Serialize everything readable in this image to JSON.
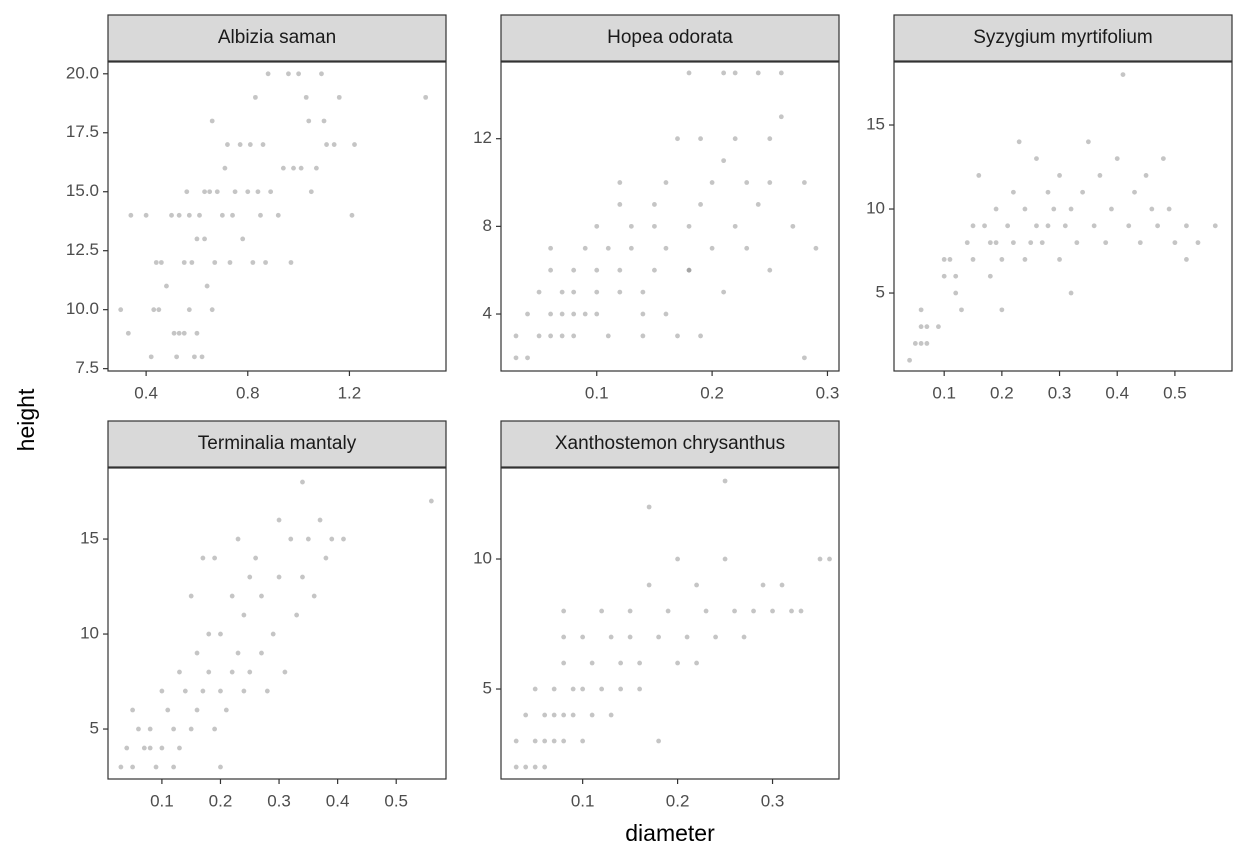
{
  "chart_data": {
    "type": "scatter",
    "x_label": "diameter",
    "y_label": "height",
    "color": "#7f7f7f",
    "alpha": 0.45,
    "panels": [
      {
        "title": "Albizia saman",
        "xlim": [
          0.25,
          1.58
        ],
        "ylim": [
          7.4,
          20.5
        ],
        "xticks": [
          0.4,
          0.8,
          1.2
        ],
        "yticks": [
          7.5,
          {
            "value": 10,
            "label": "10.0"
          },
          12.5,
          {
            "value": 15,
            "label": "15.0"
          },
          17.5,
          {
            "value": 20,
            "label": "20.0"
          }
        ],
        "x": [
          0.3,
          0.33,
          0.34,
          0.4,
          0.42,
          0.43,
          0.44,
          0.45,
          0.46,
          0.48,
          0.5,
          0.51,
          0.52,
          0.53,
          0.53,
          0.55,
          0.55,
          0.56,
          0.57,
          0.57,
          0.58,
          0.59,
          0.6,
          0.6,
          0.61,
          0.62,
          0.63,
          0.63,
          0.64,
          0.65,
          0.66,
          0.66,
          0.67,
          0.68,
          0.7,
          0.71,
          0.72,
          0.73,
          0.74,
          0.75,
          0.77,
          0.78,
          0.8,
          0.81,
          0.82,
          0.83,
          0.84,
          0.85,
          0.86,
          0.87,
          0.88,
          0.89,
          0.92,
          0.94,
          0.96,
          0.97,
          0.98,
          1.0,
          1.01,
          1.03,
          1.04,
          1.05,
          1.07,
          1.09,
          1.1,
          1.11,
          1.14,
          1.16,
          1.21,
          1.22,
          1.5
        ],
        "y": [
          10,
          9,
          14,
          14,
          8,
          10,
          12,
          10,
          12,
          11,
          14,
          9,
          8,
          9,
          14,
          12,
          9,
          15,
          10,
          14,
          12,
          8,
          13,
          9,
          14,
          8,
          15,
          13,
          11,
          15,
          18,
          10,
          12,
          15,
          14,
          16,
          17,
          12,
          14,
          15,
          17,
          13,
          15,
          17,
          12,
          19,
          15,
          14,
          17,
          12,
          20,
          15,
          14,
          16,
          20,
          12,
          16,
          20,
          16,
          19,
          18,
          15,
          16,
          20,
          18,
          17,
          17,
          19,
          14,
          17,
          19
        ]
      },
      {
        "title": "Hopea odorata",
        "xlim": [
          0.017,
          0.31
        ],
        "ylim": [
          1.4,
          15.5
        ],
        "xticks": [
          0.1,
          0.2,
          0.3
        ],
        "yticks": [
          4,
          8,
          12
        ],
        "x": [
          0.03,
          0.04,
          0.03,
          0.05,
          0.06,
          0.07,
          0.04,
          0.06,
          0.07,
          0.08,
          0.09,
          0.1,
          0.05,
          0.07,
          0.08,
          0.1,
          0.12,
          0.14,
          0.06,
          0.08,
          0.1,
          0.12,
          0.15,
          0.18,
          0.06,
          0.09,
          0.11,
          0.13,
          0.16,
          0.2,
          0.23,
          0.08,
          0.11,
          0.14,
          0.17,
          0.1,
          0.13,
          0.15,
          0.18,
          0.22,
          0.12,
          0.15,
          0.19,
          0.24,
          0.12,
          0.16,
          0.2,
          0.23,
          0.25,
          0.17,
          0.19,
          0.22,
          0.25,
          0.21,
          0.26,
          0.18,
          0.21,
          0.22,
          0.24,
          0.26,
          0.28,
          0.29,
          0.28,
          0.18,
          0.21,
          0.25,
          0.27,
          0.16,
          0.19,
          0.14
        ],
        "y": [
          2,
          2,
          3,
          3,
          3,
          3,
          4,
          4,
          4,
          4,
          4,
          4,
          5,
          5,
          5,
          5,
          5,
          5,
          6,
          6,
          6,
          6,
          6,
          6,
          7,
          7,
          7,
          7,
          7,
          7,
          7,
          3,
          3,
          3,
          3,
          8,
          8,
          8,
          8,
          8,
          9,
          9,
          9,
          9,
          10,
          10,
          10,
          10,
          10,
          12,
          12,
          12,
          12,
          11,
          13,
          15,
          15,
          15,
          15,
          15,
          10,
          7,
          2,
          6,
          5,
          6,
          8,
          4,
          3,
          4
        ]
      },
      {
        "title": "Syzygium myrtifolium",
        "xlim": [
          0.013,
          0.599
        ],
        "ylim": [
          0.36,
          18.75
        ],
        "xticks": [
          0.1,
          0.2,
          0.3,
          0.4,
          0.5
        ],
        "yticks": [
          5,
          10,
          15
        ],
        "x": [
          0.04,
          0.05,
          0.06,
          0.07,
          0.06,
          0.07,
          0.09,
          0.06,
          0.1,
          0.1,
          0.12,
          0.13,
          0.12,
          0.14,
          0.15,
          0.16,
          0.17,
          0.18,
          0.18,
          0.19,
          0.2,
          0.2,
          0.21,
          0.22,
          0.22,
          0.23,
          0.24,
          0.24,
          0.26,
          0.26,
          0.27,
          0.28,
          0.29,
          0.3,
          0.3,
          0.31,
          0.32,
          0.32,
          0.33,
          0.34,
          0.35,
          0.36,
          0.37,
          0.38,
          0.39,
          0.4,
          0.41,
          0.42,
          0.43,
          0.44,
          0.45,
          0.46,
          0.47,
          0.48,
          0.49,
          0.5,
          0.52,
          0.52,
          0.54,
          0.57,
          0.15,
          0.25,
          0.28,
          0.11,
          0.19
        ],
        "y": [
          1,
          2,
          2,
          2,
          3,
          3,
          3,
          4,
          6,
          7,
          5,
          4,
          6,
          8,
          7,
          12,
          9,
          6,
          8,
          10,
          7,
          4,
          9,
          8,
          11,
          14,
          10,
          7,
          9,
          13,
          8,
          11,
          10,
          7,
          12,
          9,
          5,
          10,
          8,
          11,
          14,
          9,
          12,
          8,
          10,
          13,
          18,
          9,
          11,
          8,
          12,
          10,
          9,
          13,
          10,
          8,
          7,
          9,
          8,
          9,
          9,
          8,
          9,
          7,
          8
        ]
      },
      {
        "title": "Terminalia mantaly",
        "xlim": [
          0.008,
          0.585
        ],
        "ylim": [
          2.37,
          18.74
        ],
        "xticks": [
          0.1,
          0.2,
          0.3,
          0.4,
          0.5
        ],
        "yticks": [
          5,
          10,
          15
        ],
        "x": [
          0.03,
          0.04,
          0.05,
          0.05,
          0.06,
          0.07,
          0.08,
          0.09,
          0.1,
          0.1,
          0.11,
          0.12,
          0.12,
          0.13,
          0.13,
          0.14,
          0.15,
          0.16,
          0.16,
          0.17,
          0.17,
          0.18,
          0.19,
          0.19,
          0.2,
          0.2,
          0.21,
          0.22,
          0.22,
          0.23,
          0.23,
          0.24,
          0.24,
          0.25,
          0.25,
          0.26,
          0.27,
          0.27,
          0.28,
          0.29,
          0.3,
          0.3,
          0.31,
          0.32,
          0.33,
          0.34,
          0.34,
          0.35,
          0.36,
          0.37,
          0.38,
          0.39,
          0.41,
          0.56,
          0.15,
          0.2,
          0.08,
          0.18
        ],
        "y": [
          3,
          4,
          3,
          6,
          5,
          4,
          5,
          3,
          4,
          7,
          6,
          3,
          5,
          4,
          8,
          7,
          5,
          6,
          9,
          7,
          14,
          8,
          5,
          14,
          10,
          7,
          6,
          8,
          12,
          9,
          15,
          11,
          7,
          8,
          13,
          14,
          12,
          9,
          7,
          10,
          13,
          16,
          8,
          15,
          11,
          18,
          13,
          15,
          12,
          16,
          14,
          15,
          15,
          17,
          12,
          3,
          4,
          10
        ]
      },
      {
        "title": "Xanthostemon chrysanthus",
        "xlim": [
          0.014,
          0.37
        ],
        "ylim": [
          1.54,
          13.5
        ],
        "xticks": [
          0.1,
          0.2,
          0.3
        ],
        "yticks": [
          5,
          10
        ],
        "x": [
          0.03,
          0.03,
          0.04,
          0.05,
          0.06,
          0.04,
          0.05,
          0.06,
          0.06,
          0.07,
          0.07,
          0.08,
          0.08,
          0.09,
          0.1,
          0.05,
          0.07,
          0.08,
          0.08,
          0.08,
          0.09,
          0.1,
          0.1,
          0.11,
          0.11,
          0.12,
          0.12,
          0.13,
          0.13,
          0.14,
          0.14,
          0.15,
          0.15,
          0.16,
          0.16,
          0.17,
          0.17,
          0.18,
          0.18,
          0.19,
          0.2,
          0.2,
          0.21,
          0.22,
          0.22,
          0.23,
          0.24,
          0.25,
          0.25,
          0.26,
          0.27,
          0.28,
          0.29,
          0.3,
          0.31,
          0.32,
          0.33,
          0.35,
          0.36
        ],
        "y": [
          3,
          2,
          2,
          2,
          2,
          4,
          3,
          3,
          4,
          3,
          4,
          4,
          3,
          4,
          3,
          5,
          5,
          6,
          7,
          8,
          5,
          5,
          7,
          4,
          6,
          5,
          8,
          7,
          4,
          6,
          5,
          7,
          8,
          5,
          6,
          9,
          12,
          7,
          3,
          8,
          10,
          6,
          7,
          9,
          6,
          8,
          7,
          13,
          10,
          8,
          7,
          8,
          9,
          8,
          9,
          8,
          8,
          10,
          10
        ]
      }
    ]
  }
}
